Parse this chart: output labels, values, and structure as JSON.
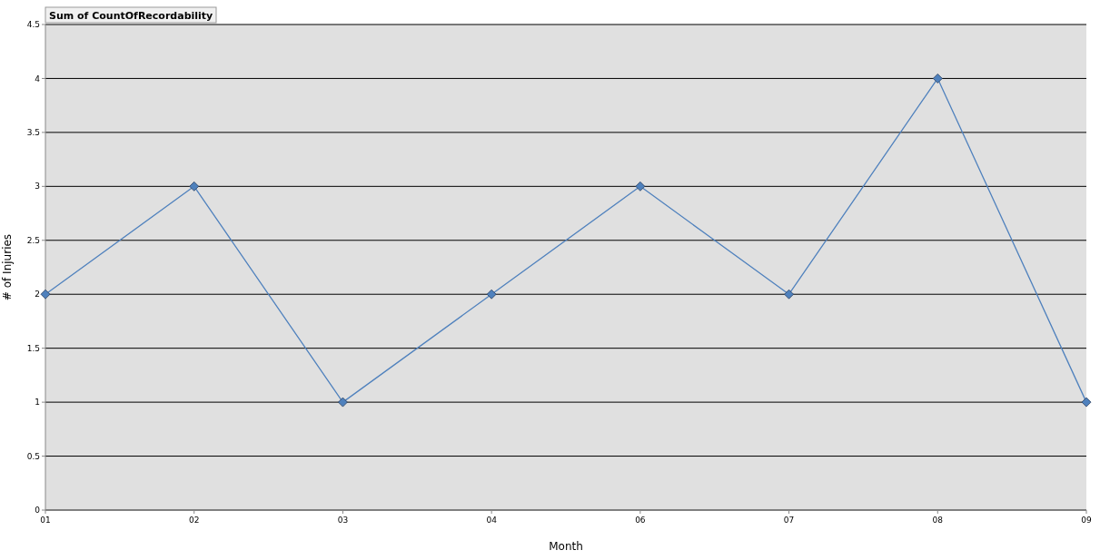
{
  "chart_data": {
    "type": "line",
    "title": "Sum of CountOfRecordability",
    "xlabel": "Month",
    "ylabel": "# of Injuries",
    "categories": [
      "01",
      "02",
      "03",
      "04",
      "06",
      "07",
      "08",
      "09"
    ],
    "series": [
      {
        "color": "#4f81bd",
        "values": [
          2,
          3,
          1,
          2,
          3,
          2,
          4,
          1
        ]
      }
    ],
    "ylim": [
      0,
      4.5
    ],
    "yticks": [
      0,
      0.5,
      1,
      1.5,
      2,
      2.5,
      3,
      3.5,
      4,
      4.5
    ],
    "grid": "y",
    "marker": "diamond",
    "line_style": "solid"
  }
}
